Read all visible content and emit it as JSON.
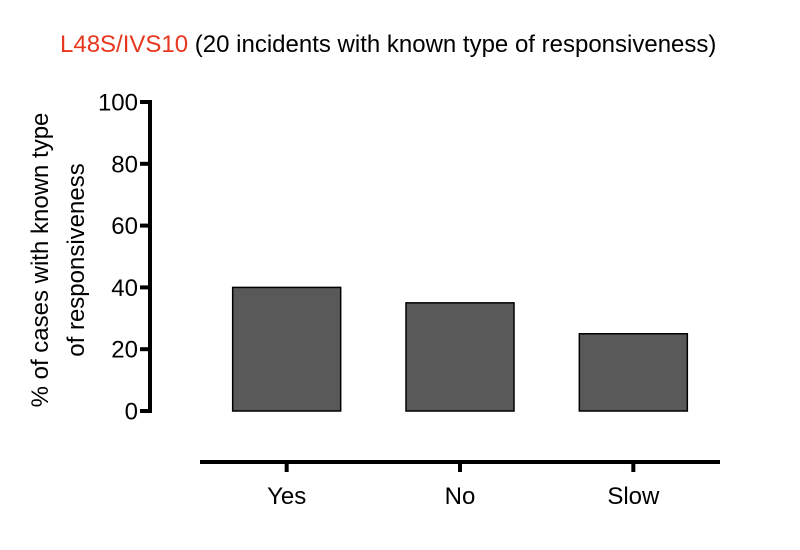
{
  "chart_data": {
    "type": "bar",
    "title": {
      "highlight": "L48S/IVS10",
      "rest": " (20 incidents with known type of responsiveness)"
    },
    "ylabel": [
      "% of cases with  known type",
      "of responsiveness"
    ],
    "xlabel": "",
    "categories": [
      "Yes",
      "No",
      "Slow"
    ],
    "values": [
      40,
      35,
      25
    ],
    "ylim": [
      0,
      100
    ],
    "yticks": [
      0,
      20,
      40,
      60,
      80,
      100
    ],
    "grid": false,
    "legend": "none"
  },
  "colors": {
    "bar_fill": "#595959",
    "title_highlight": "#e8371f",
    "axis": "#000000"
  }
}
